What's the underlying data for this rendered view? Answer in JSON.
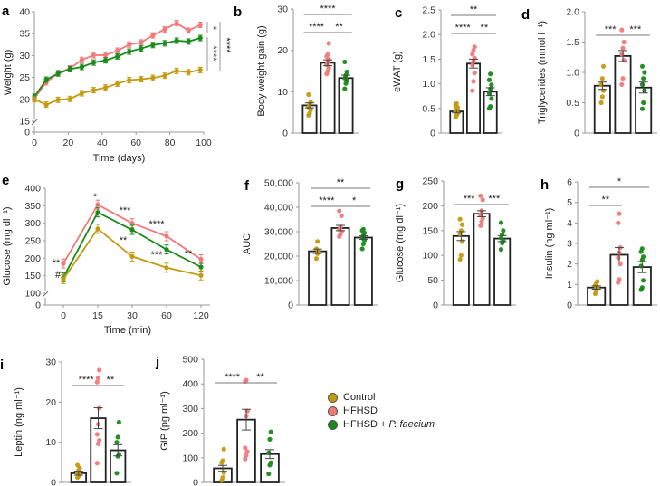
{
  "colors": {
    "Control": "#c49a12",
    "HFHSD": "#f07a7a",
    "HFHSD + P. faecium": "#1a8a1a",
    "bar_edge": "#222222",
    "axis": "#999999"
  },
  "legend": {
    "items": [
      {
        "label": "Control",
        "color": "#c49a12"
      },
      {
        "label": "HFHSD",
        "color": "#f07a7a"
      },
      {
        "label_main": "HFHSD + ",
        "label_italic": "P. faecium",
        "color": "#1a8a1a"
      }
    ]
  },
  "chart_data": [
    {
      "id": "a",
      "letter": "a",
      "type": "line",
      "xlabel": "Time (days)",
      "ylabel": "Weight (g)",
      "xlim": [
        0,
        100
      ],
      "xticks": [
        0,
        20,
        40,
        60,
        80,
        100
      ],
      "ylim": [
        15,
        40
      ],
      "yticks": [
        15,
        20,
        25,
        30,
        35,
        40
      ],
      "axis_break": true,
      "break_lower_tick": 0,
      "x": [
        0,
        7,
        14,
        21,
        28,
        35,
        42,
        49,
        56,
        63,
        70,
        77,
        84,
        91,
        98
      ],
      "series": [
        {
          "name": "HFHSD",
          "values": [
            20.2,
            23.9,
            26.0,
            27.1,
            29.0,
            30.1,
            30.1,
            31.1,
            32.5,
            33.0,
            34.6,
            36.0,
            37.4,
            35.7,
            37.0
          ]
        },
        {
          "name": "HFHSD + P. faecium",
          "values": [
            20.6,
            24.5,
            25.9,
            26.9,
            27.4,
            28.4,
            28.9,
            29.8,
            30.9,
            31.6,
            32.4,
            32.8,
            33.4,
            33.2,
            34.0
          ]
        },
        {
          "name": "Control",
          "values": [
            20.0,
            18.8,
            19.9,
            20.1,
            21.4,
            22.1,
            22.7,
            23.6,
            24.4,
            24.6,
            24.9,
            25.4,
            26.5,
            26.2,
            26.7
          ]
        }
      ],
      "significance": [
        {
          "label": "*",
          "between": [
            "HFHSD",
            "HFHSD + P. faecium"
          ]
        },
        {
          "label": "****",
          "between": [
            "HFHSD + P. faecium",
            "Control"
          ]
        },
        {
          "label": "****",
          "between": [
            "HFHSD",
            "Control"
          ]
        }
      ]
    },
    {
      "id": "b",
      "letter": "b",
      "type": "bar",
      "ylabel": "Body weight gain (g)",
      "ylim": [
        0,
        30
      ],
      "yticks": [
        "0",
        "10",
        "20",
        "30"
      ],
      "ytick_values": [
        0,
        10,
        20,
        30
      ],
      "categories": [
        "Control",
        "HFHSD",
        "HFHSD + P. faecium"
      ],
      "values": [
        6.7,
        17.0,
        13.3
      ],
      "sem": [
        0.6,
        0.7,
        0.7
      ],
      "points": [
        [
          4.3,
          4.8,
          5.6,
          6.3,
          7.0,
          7.5,
          9.3
        ],
        [
          14.3,
          15.0,
          15.8,
          16.5,
          17.2,
          17.8,
          18.5,
          19.0,
          21.7
        ],
        [
          10.7,
          12.0,
          12.7,
          13.3,
          14.0,
          14.8,
          17.2
        ]
      ],
      "significance": [
        {
          "label": "****",
          "from": 0,
          "to": 1,
          "level": 1
        },
        {
          "label": "**",
          "from": 1,
          "to": 2,
          "level": 1
        },
        {
          "label": "****",
          "from": 0,
          "to": 2,
          "level": 2
        }
      ]
    },
    {
      "id": "c",
      "letter": "c",
      "type": "bar",
      "ylabel": "eWAT (g)",
      "ylim": [
        0,
        2.5
      ],
      "yticks": [
        "0",
        "0.5",
        "1.0",
        "1.5",
        "2.0",
        "2.5"
      ],
      "ytick_values": [
        0,
        0.5,
        1.0,
        1.5,
        2.0,
        2.5
      ],
      "categories": [
        "Control",
        "HFHSD",
        "HFHSD + P. faecium"
      ],
      "values": [
        0.44,
        1.41,
        0.84
      ],
      "sem": [
        0.03,
        0.09,
        0.08
      ],
      "points": [
        [
          0.32,
          0.36,
          0.4,
          0.44,
          0.48,
          0.52,
          0.56,
          0.6
        ],
        [
          0.86,
          1.05,
          1.22,
          1.38,
          1.45,
          1.52,
          1.6,
          1.68,
          1.75
        ],
        [
          0.5,
          0.54,
          0.7,
          0.8,
          0.9,
          0.98,
          1.08,
          1.2
        ]
      ],
      "significance": [
        {
          "label": "****",
          "from": 0,
          "to": 1,
          "level": 1
        },
        {
          "label": "**",
          "from": 1,
          "to": 2,
          "level": 1
        },
        {
          "label": "**",
          "from": 0,
          "to": 2,
          "level": 2
        }
      ]
    },
    {
      "id": "d",
      "letter": "d",
      "type": "bar",
      "ylabel": "Triglycerides (mmol l⁻¹)",
      "ylim": [
        0,
        2.0
      ],
      "yticks": [
        "0",
        "0.5",
        "1.0",
        "1.5",
        "2.0"
      ],
      "ytick_values": [
        0,
        0.5,
        1.0,
        1.5,
        2.0
      ],
      "categories": [
        "Control",
        "HFHSD",
        "HFHSD + P. faecium"
      ],
      "values": [
        0.78,
        1.27,
        0.75
      ],
      "sem": [
        0.06,
        0.09,
        0.09
      ],
      "points": [
        [
          0.5,
          0.6,
          0.7,
          0.8,
          0.9,
          1.1
        ],
        [
          0.8,
          0.9,
          1.2,
          1.3,
          1.4,
          1.5,
          1.7
        ],
        [
          0.4,
          0.5,
          0.7,
          0.8,
          0.9,
          1.0,
          1.1
        ]
      ],
      "significance": [
        {
          "label": "***",
          "from": 0,
          "to": 1,
          "level": 1
        },
        {
          "label": "***",
          "from": 1,
          "to": 2,
          "level": 1
        }
      ]
    },
    {
      "id": "e",
      "letter": "e",
      "type": "line",
      "xlabel": "Time (min)",
      "ylabel": "Glucose (mg dl⁻¹)",
      "categories": [
        "0",
        "15",
        "30",
        "60",
        "120"
      ],
      "ylim": [
        100,
        400
      ],
      "yticks": [
        100,
        150,
        200,
        250,
        300,
        350,
        400
      ],
      "axis_break": true,
      "break_lower_tick": 0,
      "series": [
        {
          "name": "HFHSD",
          "values": [
            185,
            353,
            300,
            263,
            197
          ]
        },
        {
          "name": "HFHSD + P. faecium",
          "values": [
            145,
            331,
            281,
            225,
            175
          ]
        },
        {
          "name": "Control",
          "values": [
            140,
            284,
            205,
            173,
            151
          ]
        }
      ],
      "annotations": [
        {
          "x": "0",
          "label": "**"
        },
        {
          "x": "0",
          "label": "#"
        },
        {
          "x": "15",
          "label": "*"
        },
        {
          "x": "30",
          "label": "***"
        },
        {
          "x": "30",
          "label": "**"
        },
        {
          "x": "60",
          "label": "****"
        },
        {
          "x": "60",
          "label": "***"
        },
        {
          "x": "120",
          "label": "**"
        }
      ]
    },
    {
      "id": "f",
      "letter": "f",
      "type": "bar",
      "ylabel": "AUC",
      "ylim": [
        0,
        50000
      ],
      "yticks": [
        "0",
        "10,000",
        "20,000",
        "30,000",
        "40,000",
        "50,000"
      ],
      "ytick_values": [
        0,
        10000,
        20000,
        30000,
        40000,
        50000
      ],
      "categories": [
        "Control",
        "HFHSD",
        "HFHSD + P. faecium"
      ],
      "values": [
        22000,
        31500,
        27600
      ],
      "sem": [
        900,
        1100,
        700
      ],
      "points": [
        [
          19000,
          21000,
          22000,
          23000,
          26000
        ],
        [
          28000,
          29000,
          30000,
          31000,
          32000,
          36500,
          38500
        ],
        [
          23000,
          25000,
          26500,
          27500,
          28500,
          29500,
          30500,
          31000
        ]
      ],
      "significance": [
        {
          "label": "****",
          "from": 0,
          "to": 1,
          "level": 1
        },
        {
          "label": "*",
          "from": 1,
          "to": 2,
          "level": 1
        },
        {
          "label": "**",
          "from": 0,
          "to": 2,
          "level": 2
        }
      ]
    },
    {
      "id": "g",
      "letter": "g",
      "type": "bar",
      "ylabel": "Glucose (mg dl⁻¹)",
      "ylim": [
        0,
        250
      ],
      "yticks": [
        "0",
        "50",
        "100",
        "150",
        "200",
        "250"
      ],
      "ytick_values": [
        0,
        50,
        100,
        150,
        200,
        250
      ],
      "categories": [
        "Control",
        "HFHSD",
        "HFHSD + P. faecium"
      ],
      "values": [
        139,
        184,
        134
      ],
      "sem": [
        9,
        6,
        6
      ],
      "points": [
        [
          92,
          100,
          128,
          143,
          150,
          162,
          173
        ],
        [
          160,
          168,
          175,
          182,
          190,
          212,
          220
        ],
        [
          112,
          125,
          130,
          135,
          142,
          150,
          166
        ]
      ],
      "significance": [
        {
          "label": "***",
          "from": 0,
          "to": 1,
          "level": 1
        },
        {
          "label": "***",
          "from": 1,
          "to": 2,
          "level": 1
        }
      ]
    },
    {
      "id": "h",
      "letter": "h",
      "type": "bar",
      "ylabel": "Insulin (ng ml⁻¹)",
      "ylim": [
        0,
        6
      ],
      "yticks": [
        "0",
        "1",
        "2",
        "3",
        "4",
        "5",
        "6"
      ],
      "ytick_values": [
        0,
        1,
        2,
        3,
        4,
        5,
        6
      ],
      "categories": [
        "Control",
        "HFHSD",
        "HFHSD + P. faecium"
      ],
      "values": [
        0.85,
        2.45,
        1.85
      ],
      "sem": [
        0.08,
        0.35,
        0.27
      ],
      "points": [
        [
          0.55,
          0.7,
          0.85,
          0.95,
          1.05,
          1.15
        ],
        [
          1.1,
          1.25,
          2.0,
          2.3,
          2.55,
          2.8,
          4.0,
          4.45
        ],
        [
          0.75,
          0.85,
          1.2,
          1.9,
          2.2,
          2.35,
          2.6,
          2.75
        ]
      ],
      "significance": [
        {
          "label": "**",
          "from": 0,
          "to": 1,
          "level": 1
        },
        {
          "label": "*",
          "from": 0,
          "to": 2,
          "level": 2
        }
      ]
    },
    {
      "id": "i",
      "letter": "i",
      "type": "bar",
      "ylabel": "Leptin (ng ml⁻¹)",
      "ylim": [
        0,
        30
      ],
      "yticks": [
        "0",
        "10",
        "20",
        "30"
      ],
      "ytick_values": [
        0,
        10,
        20,
        30
      ],
      "categories": [
        "Control",
        "HFHSD",
        "HFHSD + P. faecium"
      ],
      "values": [
        2.3,
        16.0,
        8.0
      ],
      "sem": [
        0.5,
        2.6,
        1.4
      ],
      "points": [
        [
          1.2,
          1.6,
          2.0,
          2.4,
          3.0,
          3.6,
          4.3
        ],
        [
          4.8,
          9.6,
          10.5,
          12.0,
          14.5,
          18.5,
          25.0,
          26.0,
          28.0
        ],
        [
          2.3,
          6.5,
          7.0,
          10.0,
          11.3,
          15.0
        ]
      ],
      "significance": [
        {
          "label": "****",
          "from": 0,
          "to": 1,
          "level": 1
        },
        {
          "label": "**",
          "from": 1,
          "to": 2,
          "level": 1
        }
      ]
    },
    {
      "id": "j",
      "letter": "j",
      "type": "bar",
      "ylabel": "GIP (pg ml⁻¹)",
      "ylim": [
        0,
        500
      ],
      "yticks": [
        "0",
        "100",
        "200",
        "300",
        "400",
        "500"
      ],
      "ytick_values": [
        0,
        100,
        200,
        300,
        400,
        500
      ],
      "categories": [
        "Control",
        "HFHSD",
        "HFHSD + P. faecium"
      ],
      "values": [
        57,
        255,
        115
      ],
      "sem": [
        12,
        42,
        18
      ],
      "points": [
        [
          8,
          20,
          40,
          80,
          88,
          135
        ],
        [
          95,
          110,
          125,
          140,
          270,
          290,
          410,
          415
        ],
        [
          35,
          70,
          80,
          120,
          175,
          205
        ]
      ],
      "significance": [
        {
          "label": "****",
          "from": 0,
          "to": 1,
          "level": 1
        },
        {
          "label": "**",
          "from": 1,
          "to": 2,
          "level": 1
        }
      ]
    }
  ]
}
